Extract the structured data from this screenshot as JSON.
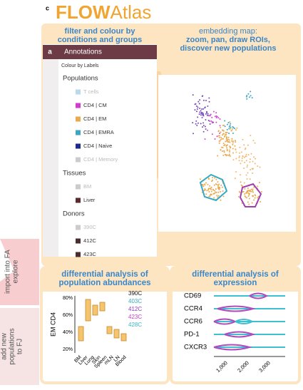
{
  "header": {
    "label": "c",
    "title_bold": "FLOW",
    "title_rest": "Atlas"
  },
  "side_labels": [
    {
      "lines": [
        "import into FA",
        "explore"
      ]
    },
    {
      "lines": [
        "add new",
        "populations",
        "to FJ"
      ]
    }
  ],
  "filter_panel": {
    "title_lines": [
      "filter and colour by",
      "conditions and groups"
    ],
    "tab": "a",
    "header": "Annotations",
    "dropdown": "Colour by Labels",
    "groups": [
      {
        "name": "Populations",
        "items": [
          {
            "label": "T cells",
            "color": "#b9d9ec",
            "faded": true
          },
          {
            "label": "CD4 | CM",
            "color": "#d23ad0",
            "faded": false
          },
          {
            "label": "CD4 | EM",
            "color": "#e9a94d",
            "faded": false
          },
          {
            "label": "CD4 | EMRA",
            "color": "#3aa6c4",
            "faded": false
          },
          {
            "label": "CD4 | Naive",
            "color": "#1f2b8c",
            "faded": false
          },
          {
            "label": "CD4 | Memory",
            "color": "#cccccc",
            "faded": true
          }
        ]
      },
      {
        "name": "Tissues",
        "items": [
          {
            "label": "BM",
            "color": "#cccccc",
            "faded": true
          },
          {
            "label": "Liver",
            "color": "#5a2b2b",
            "faded": false
          }
        ]
      },
      {
        "name": "Donors",
        "items": [
          {
            "label": "390C",
            "color": "#cccccc",
            "faded": true
          },
          {
            "label": "412C",
            "color": "#4a2e2e",
            "faded": false
          },
          {
            "label": "423C",
            "color": "#4a2e2e",
            "faded": false
          }
        ]
      }
    ]
  },
  "map_panel": {
    "title_lines": [
      "embedding map:",
      "zoom, pan, draw ROIs,",
      "discover new populations"
    ]
  },
  "abundance_panel": {
    "title_lines": [
      "differential analysis of",
      "population abundances"
    ],
    "y_label": "EM CD4",
    "yticks": [
      "80%",
      "60%",
      "40%",
      "20%"
    ],
    "categories": [
      "BM",
      "Liver",
      "Lung",
      "Skin",
      "Spleen",
      "mLN",
      "LN",
      "Blood"
    ],
    "legend": [
      {
        "label": "390C",
        "color": "#111111"
      },
      {
        "label": "403C",
        "color": "#33aeb8"
      },
      {
        "label": "412C",
        "color": "#8a3ab8"
      },
      {
        "label": "423C",
        "color": "#c23ec2"
      },
      {
        "label": "428C",
        "color": "#3fb4c4"
      }
    ]
  },
  "expression_panel": {
    "title_lines": [
      "differential analysis of",
      "expression"
    ],
    "markers": [
      "CD69",
      "CCR4",
      "CCR6",
      "PD-1",
      "CXCR3"
    ],
    "xticks": [
      "1,000",
      "2,000",
      "3,000"
    ]
  }
}
